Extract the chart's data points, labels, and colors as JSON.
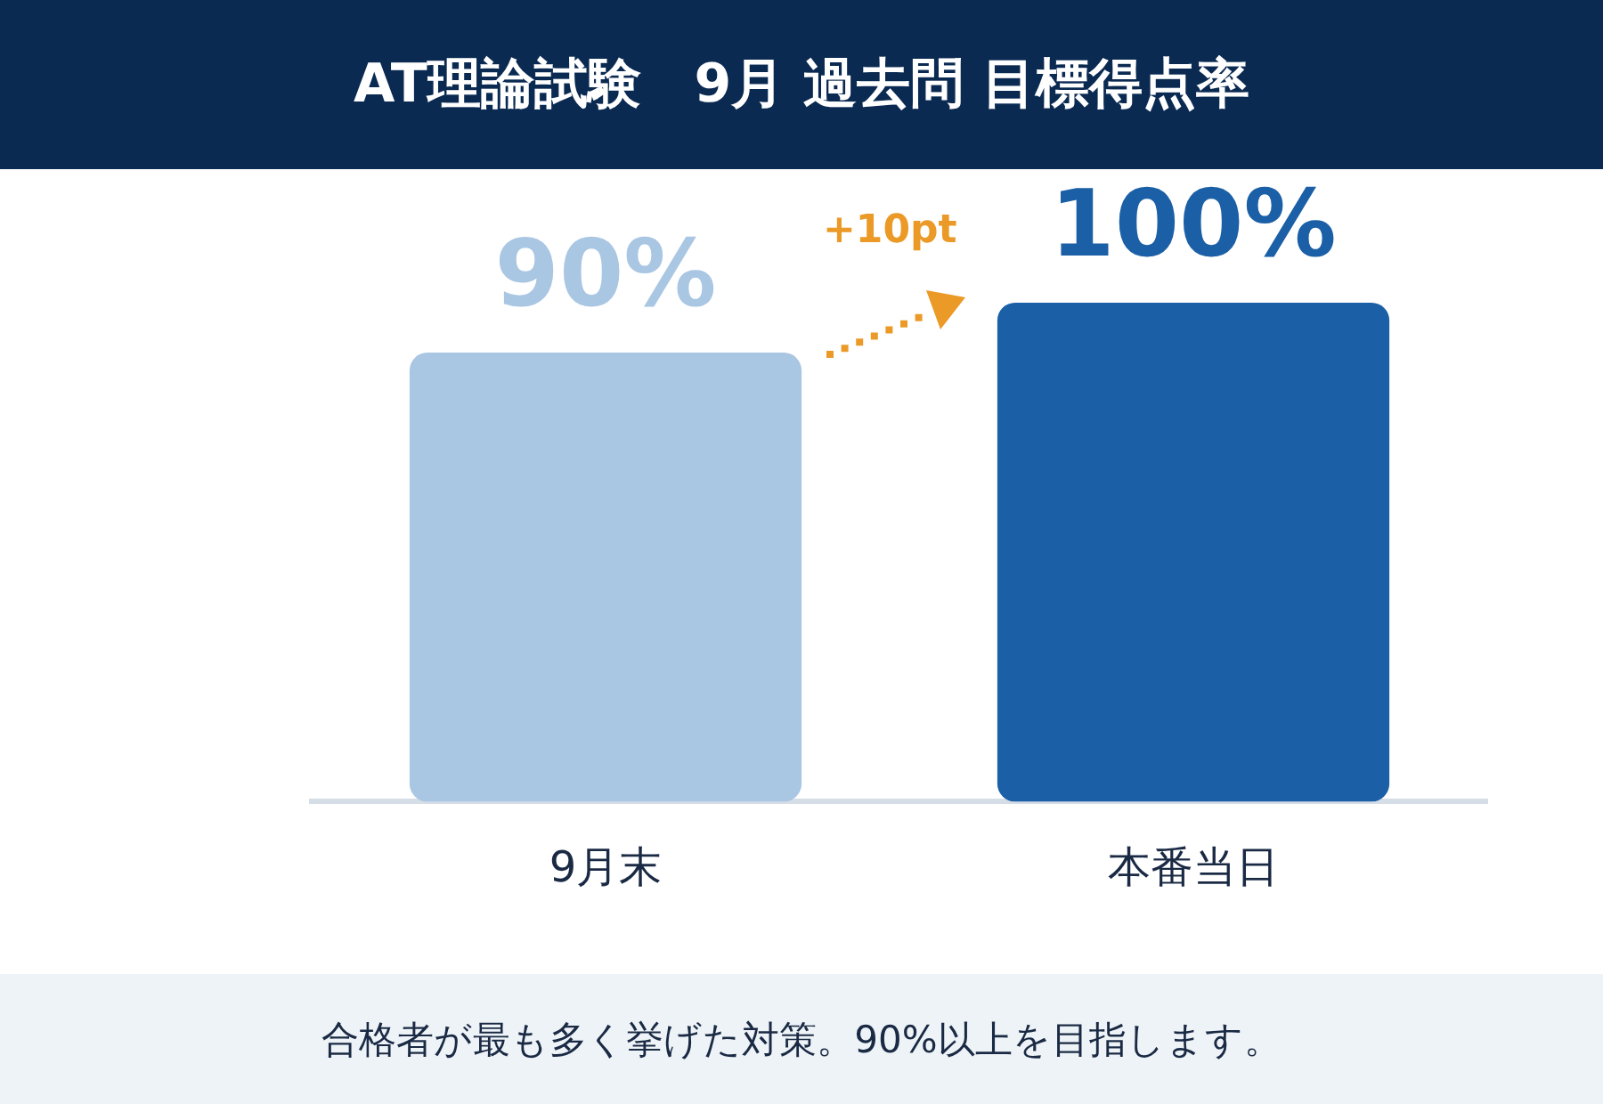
{
  "chart_data": {
    "type": "bar",
    "title": "AT理論試験　9月 過去問 目標得点率",
    "categories": [
      "9月末",
      "本番当日"
    ],
    "values": [
      90,
      100
    ],
    "colors": [
      "#a9c6e3",
      "#1b5fa6"
    ],
    "value_labels": [
      "90%",
      "100%"
    ],
    "annotations": [
      "+10pt",
      "合格者が最も多く挙げた対策。90%以上を目指します。"
    ]
  }
}
